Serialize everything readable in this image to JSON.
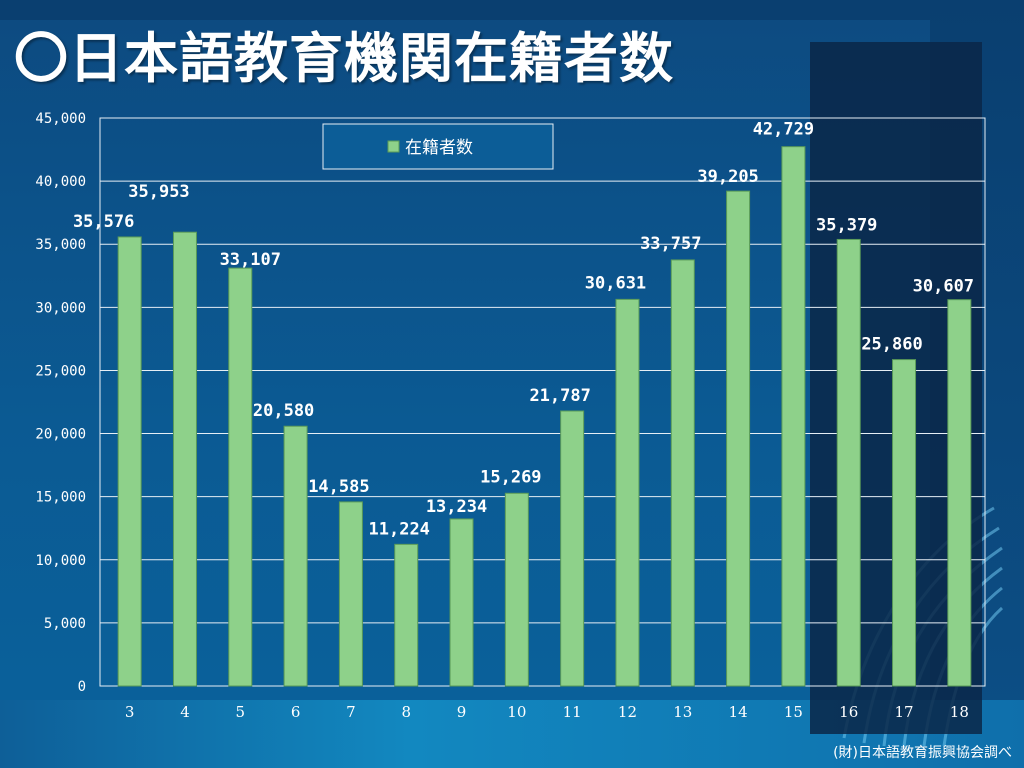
{
  "page": {
    "title": "〇日本語教育機関在籍者数",
    "source": "(財)日本語教育振興協会調べ"
  },
  "colors": {
    "bar": "#8ed18a",
    "bar_edge": "#5a9a58",
    "grid": "#e6eef5",
    "label": "#ffffff",
    "dark_panel": "#0a2748"
  },
  "chart_data": {
    "type": "bar",
    "categories": [
      "3",
      "4",
      "5",
      "6",
      "7",
      "8",
      "9",
      "10",
      "11",
      "12",
      "13",
      "14",
      "15",
      "16",
      "17",
      "18"
    ],
    "series": [
      {
        "name": "在籍者数",
        "values": [
          35576,
          35953,
          33107,
          20580,
          14585,
          11224,
          13234,
          15269,
          21787,
          30631,
          33757,
          39205,
          42729,
          35379,
          25860,
          30607
        ]
      }
    ],
    "data_labels": [
      "35,576",
      "35,953",
      "33,107",
      "20,580",
      "14,585",
      "11,224",
      "13,234",
      "15,269",
      "21,787",
      "30,631",
      "33,757",
      "39,205",
      "42,729",
      "35,379",
      "25,860",
      "30,607"
    ],
    "yticks": [
      0,
      5000,
      10000,
      15000,
      20000,
      25000,
      30000,
      35000,
      40000,
      45000
    ],
    "ytick_labels": [
      "0",
      "5,000",
      "10,000",
      "15,000",
      "20,000",
      "25,000",
      "30,000",
      "35,000",
      "40,000",
      "45,000"
    ],
    "ylim": [
      0,
      45000
    ],
    "grid": true,
    "legend": "top-center"
  }
}
